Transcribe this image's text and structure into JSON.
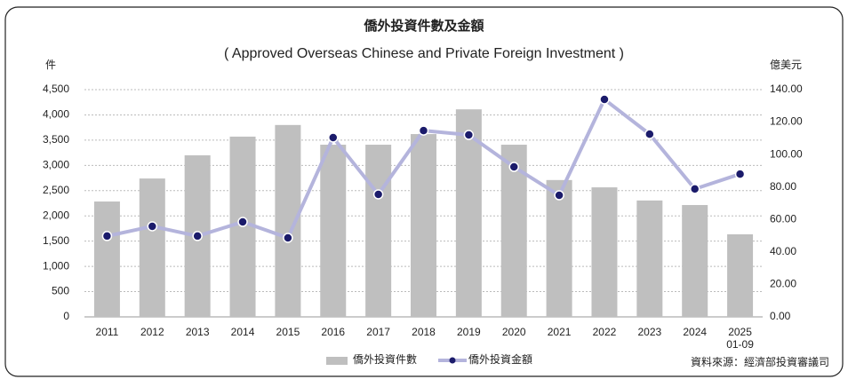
{
  "chart_data": {
    "type": "bar-line",
    "title": "僑外投資件數及金額",
    "subtitle": "( Approved Overseas Chinese and Private Foreign Investment )",
    "y_unit": "件",
    "y2_unit": "億美元",
    "source": "資料來源：經濟部投資審議司",
    "categories": [
      "2011",
      "2012",
      "2013",
      "2014",
      "2015",
      "2016",
      "2017",
      "2018",
      "2019",
      "2020",
      "2021",
      "2022",
      "2023",
      "2024",
      "2025\n01-09"
    ],
    "series": [
      {
        "name": "僑外投資件數",
        "type": "bar",
        "color": "#bfbfbf",
        "axis": "y",
        "values": [
          2285,
          2740,
          3200,
          3570,
          3800,
          3410,
          3410,
          3620,
          4110,
          3410,
          2710,
          2565,
          2305,
          2215,
          1635
        ]
      },
      {
        "name": "僑外投資金額",
        "type": "line",
        "color": "#b4b4dc",
        "marker_color": "#1b1b6b",
        "axis": "y2",
        "values": [
          49.8,
          55.8,
          49.8,
          58.5,
          48.7,
          110.5,
          75.5,
          114.8,
          112.1,
          92.4,
          74.9,
          134.0,
          112.6,
          78.8,
          88.0
        ]
      }
    ],
    "ylim": [
      0,
      4500
    ],
    "yticks": [
      0,
      {
        "value": 500,
        "label": "500"
      },
      {
        "value": 1000,
        "label": "1,000"
      },
      {
        "value": 1500,
        "label": "1,500"
      },
      {
        "value": 2000,
        "label": "2,000"
      },
      {
        "value": 2500,
        "label": "2,500"
      },
      {
        "value": 3000,
        "label": "3,000"
      },
      {
        "value": 3500,
        "label": "3,500"
      },
      {
        "value": 4000,
        "label": "4,000"
      },
      {
        "value": 4500,
        "label": "4,500"
      }
    ],
    "y2lim": [
      0,
      140
    ],
    "y2ticks": [
      {
        "value": 0,
        "label": "0.00"
      },
      {
        "value": 20,
        "label": "20.00"
      },
      {
        "value": 40,
        "label": "40.00"
      },
      {
        "value": 60,
        "label": "60.00"
      },
      {
        "value": 80,
        "label": "80.00"
      },
      {
        "value": 100,
        "label": "100.00"
      },
      {
        "value": 120,
        "label": "120.00"
      },
      {
        "value": 140,
        "label": "140.00"
      }
    ],
    "grid": true
  }
}
